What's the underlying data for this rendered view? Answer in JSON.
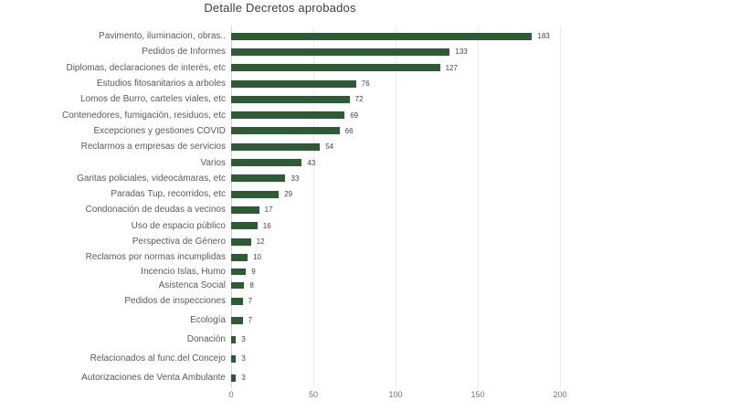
{
  "chart_data": {
    "type": "bar",
    "orientation": "horizontal",
    "title": "Detalle Decretos aprobados",
    "categories": [
      "Pavimento, iluminacion, obras..",
      "Pedidos de Informes",
      "Diplomas, declaraciones de interés, etc",
      "Estudios fitosanitarios a arboles",
      "Lomos de Burro, carteles viales, etc",
      "Contenedores, fumigación, residuos, etc",
      "Excepciones y gestiones COVID",
      "Reclarmos a empresas de servicios",
      "Varios",
      "Garitas policiales, videocámaras, etc",
      "Paradas Tup, recorridos, etc",
      "Condonación de deudas a vecinos",
      "Uso de espacio público",
      "Perspectiva de Género",
      "Reclamos por normas incumplidas",
      "Incencio Islas, Humo",
      "Asistenca Social",
      "Pedidos de inspecciones",
      "Ecología",
      "Donación",
      "Relacionados al func.del Concejo",
      "Autorizaciones de Venta Ambulante"
    ],
    "values": [
      183,
      133,
      127,
      76,
      72,
      69,
      66,
      54,
      43,
      33,
      29,
      17,
      16,
      12,
      10,
      9,
      8,
      7,
      7,
      3,
      3,
      3
    ],
    "xlabel": "",
    "ylabel": "",
    "xlim": [
      0,
      200
    ],
    "x_ticks": [
      0,
      50,
      100,
      150,
      200
    ],
    "grid": "vertical-only",
    "legend": "none",
    "data_labels": "end-of-bar",
    "colors": {
      "bar": "#2b5c33",
      "category_label": "#5a5a5a",
      "value_label": "#454545",
      "tick_label": "#757575",
      "gridline": "#ececec",
      "zero_line": "#d6d6d6",
      "title": "#3d3d3d",
      "background": "#ffffff"
    }
  }
}
